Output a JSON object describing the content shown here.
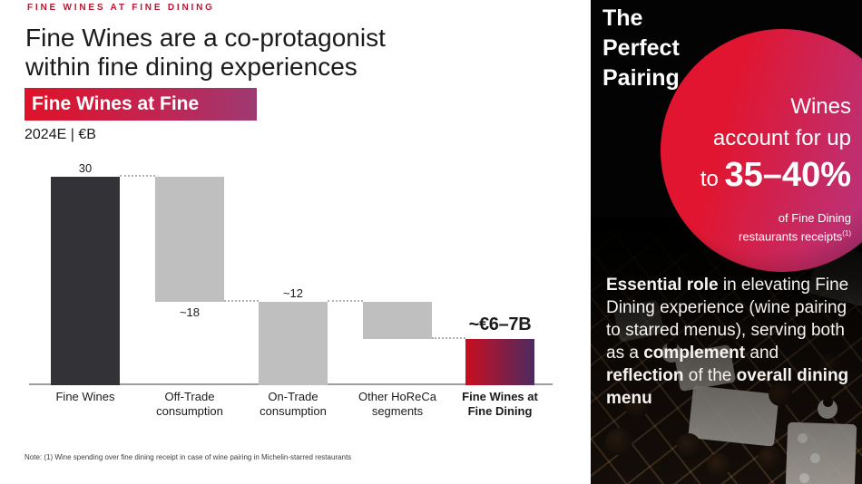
{
  "eyebrow": "FINE WINES AT FINE DINING",
  "title": {
    "line1": "Fine Wines are a co-protagonist",
    "line2": "within fine dining experiences"
  },
  "badge": {
    "label": "Fine Wines at Fine Dining"
  },
  "units_label": "2024E | €B",
  "chart_data": {
    "type": "bar",
    "subtype": "waterfall",
    "title": "Fine Wines at Fine Dining",
    "subtitle": "2024E | €B",
    "ylim": [
      0,
      30
    ],
    "grid": false,
    "categories": [
      "Fine Wines",
      "Off-Trade consumption",
      "On-Trade consumption",
      "Other HoReCa segments",
      "Fine Wines at Fine Dining"
    ],
    "bars": [
      {
        "category": "Fine Wines",
        "from": 0,
        "to": 30,
        "value_label": "30",
        "label_position": "above",
        "color_key": "dark",
        "emphasis": false
      },
      {
        "category": "Off-Trade consumption",
        "from": 30,
        "to": 12,
        "value_label": "~18",
        "label_position": "below",
        "color_key": "gray",
        "emphasis": false
      },
      {
        "category": "On-Trade consumption",
        "from": 12,
        "to": 0,
        "value_label": "~12",
        "label_position": "above",
        "color_key": "gray",
        "emphasis": false
      },
      {
        "category": "Other HoReCa segments",
        "from": 12,
        "to": 6.7,
        "value_label": "",
        "label_position": "none",
        "color_key": "gray",
        "emphasis": false
      },
      {
        "category": "Fine Wines at Fine Dining",
        "from": 6.7,
        "to": 0,
        "value_label": "~€6–7B",
        "label_position": "above",
        "color_key": "accent",
        "emphasis": true
      }
    ],
    "colors": {
      "dark": "#333237",
      "gray": "#BFBFBF",
      "accent_start": "#C90E1F",
      "accent_end": "#4B2B60"
    }
  },
  "note": "Note: (1) Wine spending over fine dining receipt in case of wine pairing in Michelin-starred restaurants",
  "panel": {
    "title_line1": "The",
    "title_line2": "Perfect",
    "title_line3": "Pairing",
    "circle": {
      "line1": "Wines",
      "line2": "account for up",
      "line3_prefix": "to ",
      "line3_value": "35–40%",
      "sub1": "of Fine Dining",
      "sub2": "restaurants receipts",
      "sub2_sup": "(1)",
      "gradient_start": "#E1152F",
      "gradient_end": "#B03A8C"
    },
    "essential": {
      "segments": [
        {
          "text": "Essential role",
          "bold": true
        },
        {
          "text": " in elevating Fine Dining experience (wine pairing to starred menus), serving both as a ",
          "bold": false
        },
        {
          "text": "complement",
          "bold": true
        },
        {
          "text": " and ",
          "bold": false
        },
        {
          "text": "reflection",
          "bold": true
        },
        {
          "text": " of the ",
          "bold": false
        },
        {
          "text": "overall dining menu",
          "bold": true
        }
      ]
    }
  }
}
